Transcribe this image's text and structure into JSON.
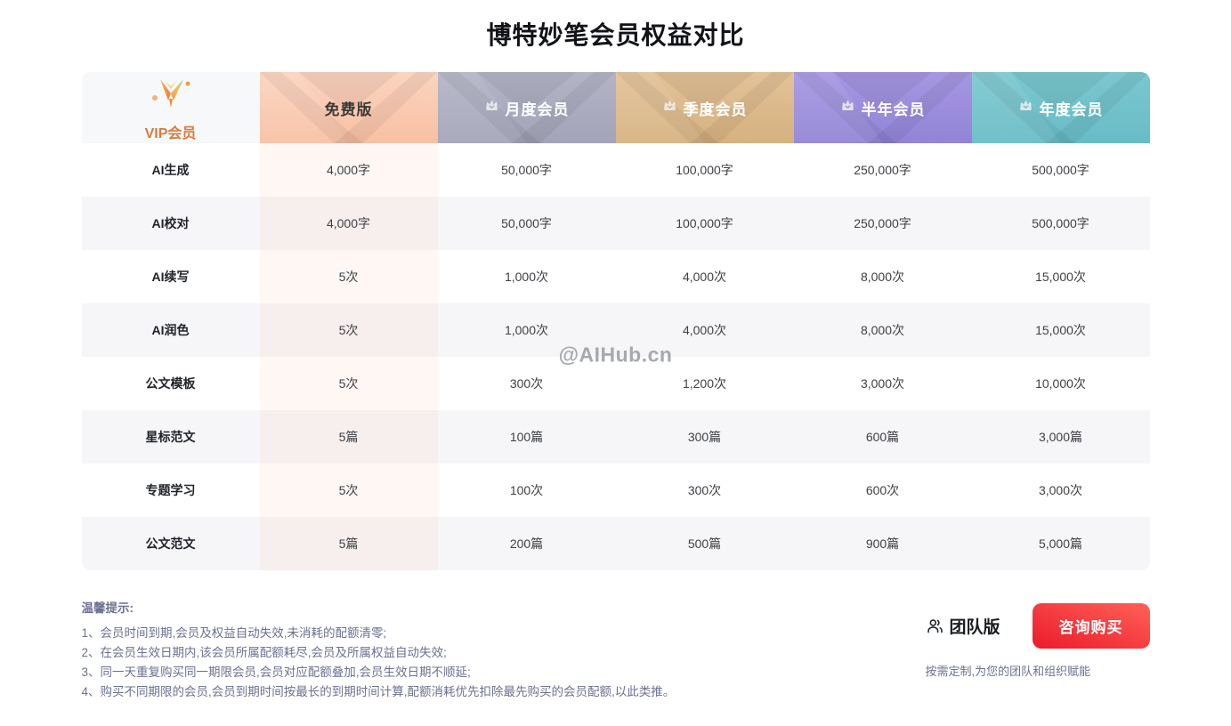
{
  "page": {
    "title": "博特妙笔会员权益对比",
    "watermark": "@AIHub.cn"
  },
  "table": {
    "first_column": {
      "logo": "vip-logo",
      "label": "VIP会员"
    },
    "plans": [
      {
        "label": "免费版",
        "crown": false,
        "bg_from": "#fbd4bf",
        "bg_to": "#f8c0a3",
        "text": "#3b3a38"
      },
      {
        "label": "月度会员",
        "crown": true,
        "bg_from": "#b3b4c5",
        "bg_to": "#a3a4b8",
        "text": "#ffffff"
      },
      {
        "label": "季度会员",
        "crown": true,
        "bg_from": "#e2c298",
        "bg_to": "#d6b180",
        "text": "#ffffff"
      },
      {
        "label": "半年会员",
        "crown": true,
        "bg_from": "#a697e2",
        "bg_to": "#9184d6",
        "text": "#ffffff"
      },
      {
        "label": "年度会员",
        "crown": true,
        "bg_from": "#7cc7cf",
        "bg_to": "#68bcc6",
        "text": "#ffffff"
      }
    ],
    "rows": [
      {
        "feature": "AI生成",
        "values": [
          "4,000字",
          "50,000字",
          "100,000字",
          "250,000字",
          "500,000字"
        ]
      },
      {
        "feature": "AI校对",
        "values": [
          "4,000字",
          "50,000字",
          "100,000字",
          "250,000字",
          "500,000字"
        ]
      },
      {
        "feature": "AI续写",
        "values": [
          "5次",
          "1,000次",
          "4,000次",
          "8,000次",
          "15,000次"
        ]
      },
      {
        "feature": "AI润色",
        "values": [
          "5次",
          "1,000次",
          "4,000次",
          "8,000次",
          "15,000次"
        ]
      },
      {
        "feature": "公文模板",
        "values": [
          "5次",
          "300次",
          "1,200次",
          "3,000次",
          "10,000次"
        ]
      },
      {
        "feature": "星标范文",
        "values": [
          "5篇",
          "100篇",
          "300篇",
          "600篇",
          "3,000篇"
        ]
      },
      {
        "feature": "专题学习",
        "values": [
          "5次",
          "100次",
          "300次",
          "600次",
          "3,000次"
        ]
      },
      {
        "feature": "公文范文",
        "values": [
          "5篇",
          "200篇",
          "500篇",
          "900篇",
          "5,000篇"
        ]
      }
    ]
  },
  "notes": {
    "title": "温馨提示:",
    "items": [
      "1、会员时间到期,会员及权益自动失效,未消耗的配额清零;",
      "2、在会员生效日期内,该会员所属配额耗尽,会员及所属权益自动失效;",
      "3、同一天重复购买同一期限会员,会员对应配额叠加,会员生效日期不顺延;",
      "4、购买不同期限的会员,会员到期时间按最长的到期时间计算,配额消耗优先扣除最先购买的会员配额,以此类推。"
    ]
  },
  "team": {
    "label": "团队版",
    "button_label": "咨询购买",
    "description": "按需定制,为您的团队和组织赋能"
  },
  "colors": {
    "button_red_from": "#ff6156",
    "button_red_to": "#eb1b2c",
    "vip_label": "#d97b3c",
    "notes_text": "#6b7191",
    "watermark": "#a6a9ad"
  }
}
